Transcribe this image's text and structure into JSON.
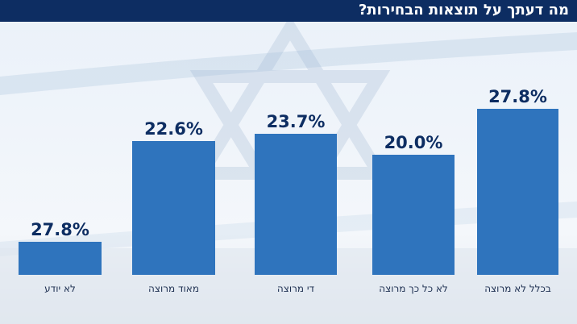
{
  "header": {
    "title": "מה דעתך על תוצאות הבחירות?"
  },
  "colors": {
    "header_bg": "#0d2d62",
    "bar": "#2f74bd",
    "value_text": "#0d2d62",
    "label_text": "#1d2f50"
  },
  "chart_data": {
    "type": "bar",
    "title": "מה דעתך על תוצאות הבחירות?",
    "categories": [
      "בכלל לא מרוצה",
      "לא כל כך מרוצה",
      "די מרוצה",
      "מאוד מרוצה",
      "לא יודע"
    ],
    "values": [
      27.8,
      20.0,
      23.7,
      22.6,
      27.8
    ],
    "value_labels": [
      "27.8%",
      "20.0%",
      "23.7%",
      "22.6%",
      "27.8%"
    ],
    "category_order": "right-to-left",
    "ylim": [
      0,
      30
    ],
    "grid": false,
    "legend": "none",
    "note": "bar heights as rendered"
  }
}
